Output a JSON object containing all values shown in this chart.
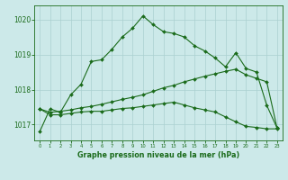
{
  "bg_color": "#cce9e9",
  "grid_color": "#aad0d0",
  "line_color": "#1a6b1a",
  "xlabel": "Graphe pression niveau de la mer (hPa)",
  "xlabel_color": "#1a6b1a",
  "ylabel_ticks": [
    1017,
    1018,
    1019,
    1020
  ],
  "xlim": [
    -0.5,
    23.5
  ],
  "ylim": [
    1016.55,
    1020.4
  ],
  "series": [
    [
      1016.8,
      1017.45,
      1017.35,
      1017.85,
      1018.15,
      1018.8,
      1018.85,
      1019.15,
      1019.5,
      1019.75,
      1020.1,
      1019.85,
      1019.65,
      1019.6,
      1019.5,
      1019.25,
      1019.1,
      1018.9,
      1018.65,
      1019.05,
      1018.6,
      1018.5,
      1017.55,
      1016.9
    ],
    [
      1017.45,
      1017.35,
      1017.38,
      1017.42,
      1017.48,
      1017.52,
      1017.58,
      1017.65,
      1017.72,
      1017.78,
      1017.85,
      1017.95,
      1018.05,
      1018.12,
      1018.22,
      1018.3,
      1018.38,
      1018.45,
      1018.52,
      1018.58,
      1018.42,
      1018.32,
      1018.22,
      1016.9
    ],
    [
      1017.45,
      1017.28,
      1017.28,
      1017.32,
      1017.36,
      1017.38,
      1017.38,
      1017.42,
      1017.46,
      1017.48,
      1017.52,
      1017.56,
      1017.6,
      1017.64,
      1017.56,
      1017.48,
      1017.42,
      1017.36,
      1017.22,
      1017.08,
      1016.95,
      1016.92,
      1016.88,
      1016.88
    ]
  ]
}
